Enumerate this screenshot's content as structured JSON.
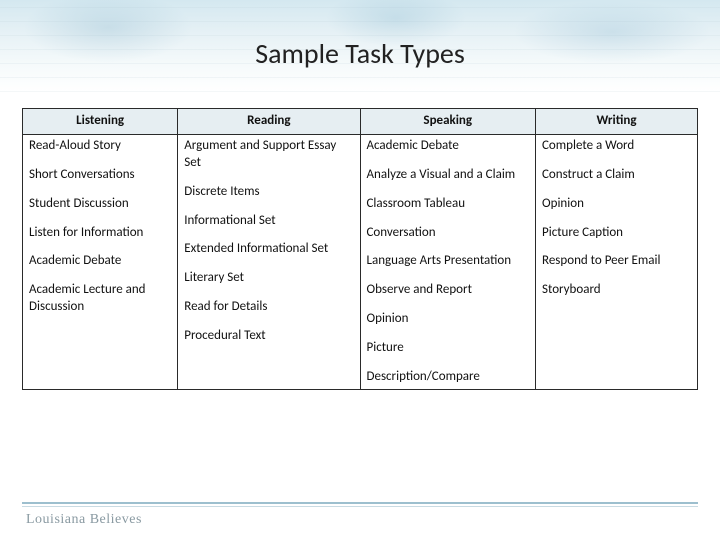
{
  "title": "Sample Task Types",
  "brand": "Louisiana Believes",
  "columns": [
    "Listening",
    "Reading",
    "Speaking",
    "Writing"
  ],
  "cells": {
    "listening": [
      "Read-Aloud Story",
      "Short Conversations",
      "Student Discussion",
      "Listen for Information",
      "Academic Debate",
      "Academic Lecture and Discussion"
    ],
    "reading": [
      "Argument and Support Essay Set",
      "Discrete Items",
      "Informational Set",
      "Extended Informational Set",
      "Literary Set",
      "Read for Details",
      "Procedural Text"
    ],
    "speaking": [
      "Academic Debate",
      "Analyze a Visual and a Claim",
      "Classroom Tableau",
      "Conversation",
      "Language Arts Presentation",
      "Observe and Report",
      "Opinion",
      "Picture",
      "Description/Compare"
    ],
    "writing": [
      "Complete a Word",
      "Construct a Claim",
      "Opinion",
      "Picture Caption",
      "Respond to Peer Email",
      "Storyboard"
    ]
  },
  "style": {
    "header_bg": "#e6eef2",
    "border_color": "#2a2a2a",
    "title_fontsize": 28,
    "cell_fontsize": 13,
    "band_gradient_top": "#d4e8f0",
    "footer_rule": "#9dbfce",
    "brand_color": "#8a9aa2"
  }
}
